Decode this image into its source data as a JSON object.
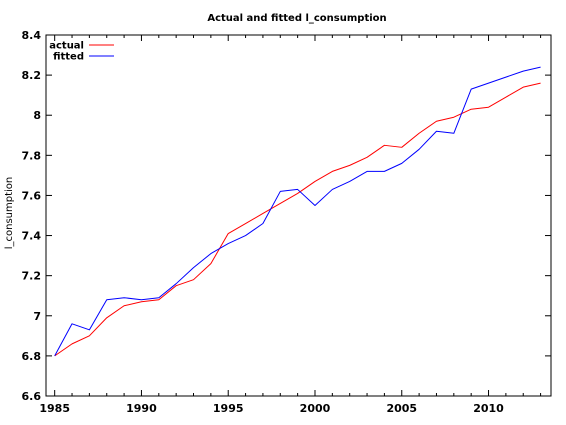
{
  "chart_data": {
    "type": "line",
    "title": "Actual and fitted l_consumption",
    "xlabel": "",
    "ylabel": "l_consumption",
    "xlim": [
      1984.5,
      2013.6
    ],
    "ylim": [
      6.6,
      8.4
    ],
    "x_ticks": [
      "1985",
      "1990",
      "1995",
      "2000",
      "2005",
      "2010"
    ],
    "y_ticks": [
      "6.6",
      "6.8",
      "7",
      "7.2",
      "7.4",
      "7.6",
      "7.8",
      "8",
      "8.2",
      "8.4"
    ],
    "legend_position": "top-left",
    "grid": false,
    "x": [
      1985,
      1986,
      1987,
      1988,
      1989,
      1990,
      1991,
      1992,
      1993,
      1994,
      1995,
      1996,
      1997,
      1998,
      1999,
      2000,
      2001,
      2002,
      2003,
      2004,
      2005,
      2006,
      2007,
      2008,
      2009,
      2010,
      2011,
      2012,
      2013
    ],
    "series": [
      {
        "name": "actual",
        "color": "#ff0000",
        "values": [
          6.8,
          6.86,
          6.9,
          6.99,
          7.05,
          7.07,
          7.08,
          7.15,
          7.18,
          7.26,
          7.41,
          7.46,
          7.51,
          7.56,
          7.61,
          7.67,
          7.72,
          7.75,
          7.79,
          7.85,
          7.84,
          7.91,
          7.97,
          7.99,
          8.03,
          8.04,
          8.09,
          8.14,
          8.16
        ]
      },
      {
        "name": "fitted",
        "color": "#0000ff",
        "values": [
          6.8,
          6.96,
          6.93,
          7.08,
          7.09,
          7.08,
          7.09,
          7.16,
          7.24,
          7.31,
          7.36,
          7.4,
          7.46,
          7.62,
          7.63,
          7.55,
          7.63,
          7.67,
          7.72,
          7.72,
          7.76,
          7.83,
          7.92,
          7.91,
          8.13,
          8.16,
          8.19,
          8.22,
          8.24
        ]
      }
    ]
  }
}
